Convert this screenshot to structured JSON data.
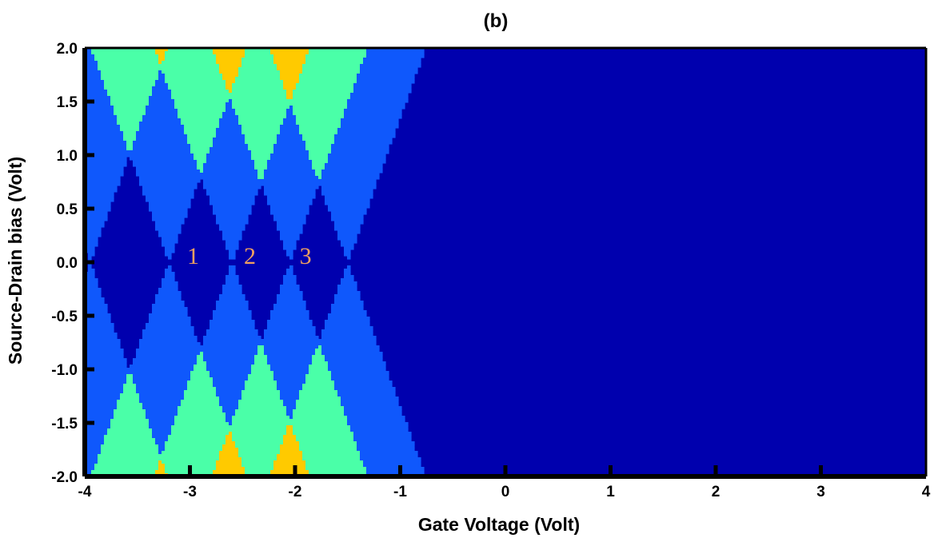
{
  "chart_data": {
    "type": "heatmap",
    "title": "(b)",
    "xlabel": "Gate Voltage (Volt)",
    "ylabel": "Source-Drain bias (Volt)",
    "xlim": [
      -4,
      4
    ],
    "ylim": [
      -2.0,
      2.0
    ],
    "x_ticks": [
      "-4",
      "-3",
      "-2",
      "-1",
      "0",
      "1",
      "2",
      "3",
      "4"
    ],
    "y_ticks": [
      "2.0",
      "1.5",
      "1.0",
      "0.5",
      "0.0",
      "-0.5",
      "-1.0",
      "-1.5",
      "-2.0"
    ],
    "grid": false,
    "legend": "none",
    "levels": [
      {
        "level": 0,
        "color": "#0000AE"
      },
      {
        "level": 1,
        "color": "#0F58FC"
      },
      {
        "level": 2,
        "color": "#4AFFA8"
      },
      {
        "level": 3,
        "color": "#FFCA00"
      },
      {
        "level": 4,
        "color": "#C80000"
      }
    ],
    "background_color": "#0000AE",
    "charge_degeneracy_points": [
      {
        "gate_voltage": -3.95,
        "bias": 0.0
      },
      {
        "gate_voltage": -3.2,
        "bias": 0.0
      },
      {
        "gate_voltage": -2.6,
        "bias": 0.0
      },
      {
        "gate_voltage": -2.05,
        "bias": 0.0
      },
      {
        "gate_voltage": -1.5,
        "bias": 0.0
      }
    ],
    "boundary_slope_bias_per_gate_volt": 2.7,
    "annotations": [
      {
        "text": "1",
        "x": -2.97,
        "y": 0.0,
        "color": "#F0A060"
      },
      {
        "text": "2",
        "x": -2.43,
        "y": 0.0,
        "color": "#F0A060"
      },
      {
        "text": "3",
        "x": -1.9,
        "y": 0.0,
        "color": "#F0A060"
      }
    ]
  }
}
